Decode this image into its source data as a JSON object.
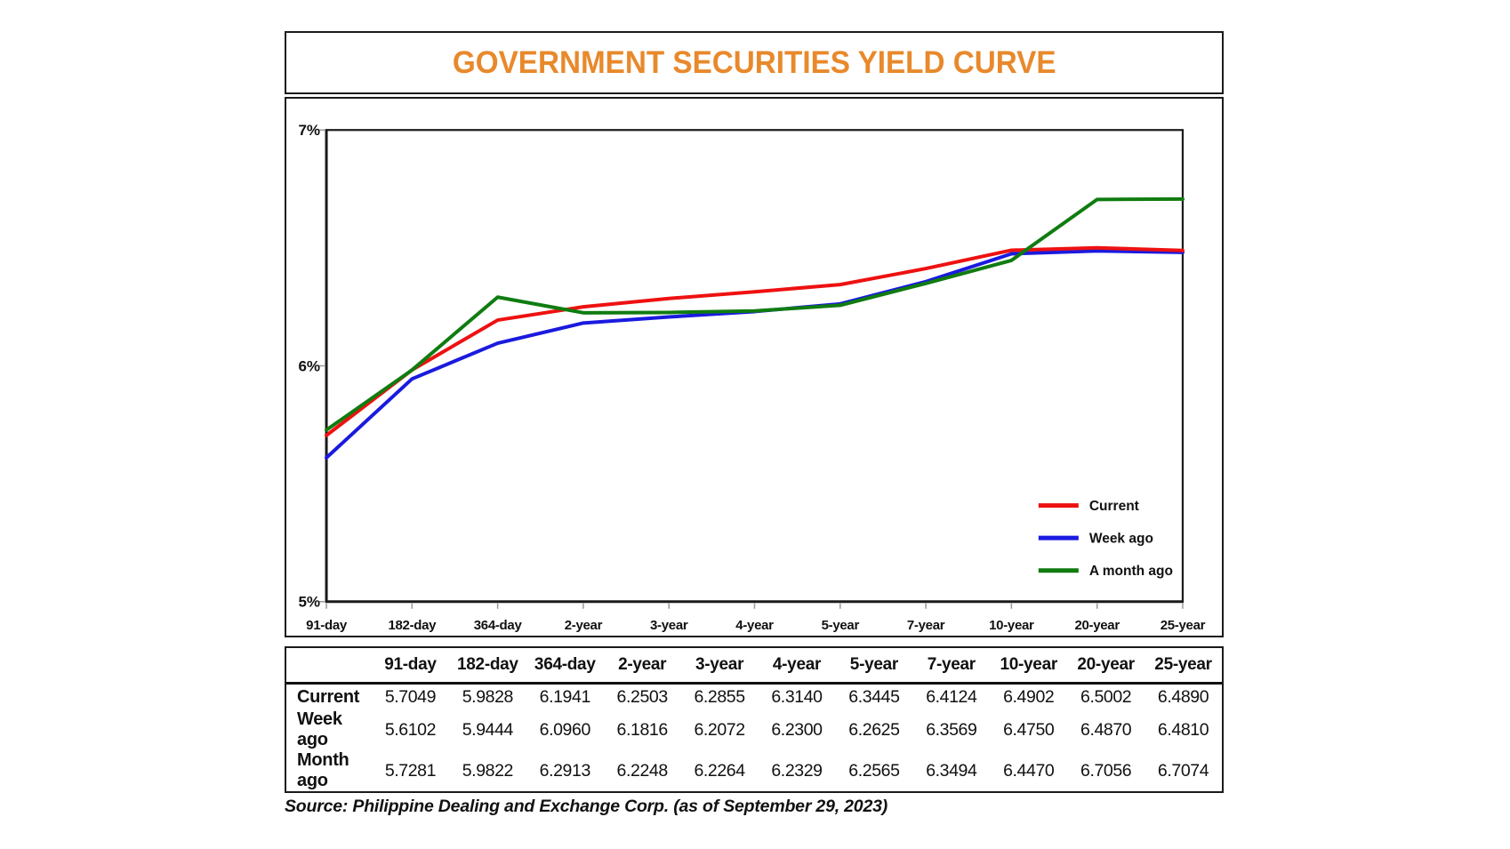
{
  "title": "GOVERNMENT SECURITIES YIELD CURVE",
  "source_note": "Source: Philippine Dealing and Exchange Corp. (as of September 29, 2023)",
  "colors": {
    "title_orange": "#E8892B",
    "current": "#EE1111",
    "week_ago": "#1A1ADF",
    "month_ago": "#107C10",
    "border": "#1A1A1A"
  },
  "chart_data": {
    "type": "line",
    "title": "GOVERNMENT SECURITIES YIELD CURVE",
    "categories": [
      "91-day",
      "182-day",
      "364-day",
      "2-year",
      "3-year",
      "4-year",
      "5-year",
      "7-year",
      "10-year",
      "20-year",
      "25-year"
    ],
    "y_axis": {
      "unit": "%",
      "min": 5,
      "max": 7,
      "ticks": [
        {
          "label": "7%",
          "value": 7
        },
        {
          "label": "6%",
          "value": 6
        },
        {
          "label": "5%",
          "value": 5
        }
      ]
    },
    "grid": false,
    "legend": {
      "position": "inside bottom-right",
      "entries": [
        "Current",
        "Week ago",
        "A month ago"
      ]
    },
    "series": [
      {
        "name": "Current",
        "color": "#EE1111",
        "values": [
          5.7049,
          5.9828,
          6.1941,
          6.2503,
          6.2855,
          6.314,
          6.3445,
          6.4124,
          6.4902,
          6.5002,
          6.489
        ]
      },
      {
        "name": "Week ago",
        "color": "#1A1ADF",
        "values": [
          5.6102,
          5.9444,
          6.096,
          6.1816,
          6.2072,
          6.23,
          6.2625,
          6.3569,
          6.475,
          6.487,
          6.481
        ]
      },
      {
        "name": "A month ago",
        "color": "#107C10",
        "values": [
          5.7281,
          5.9822,
          6.2913,
          6.2248,
          6.2264,
          6.2329,
          6.2565,
          6.3494,
          6.447,
          6.7056,
          6.7074
        ]
      }
    ]
  },
  "table": {
    "header": [
      "",
      "91-day",
      "182-day",
      "364-day",
      "2-year",
      "3-year",
      "4-year",
      "5-year",
      "7-year",
      "10-year",
      "20-year",
      "25-year"
    ],
    "rows": [
      {
        "label": "Current",
        "values": [
          "5.7049",
          "5.9828",
          "6.1941",
          "6.2503",
          "6.2855",
          "6.3140",
          "6.3445",
          "6.4124",
          "6.4902",
          "6.5002",
          "6.4890"
        ]
      },
      {
        "label": "Week ago",
        "values": [
          "5.6102",
          "5.9444",
          "6.0960",
          "6.1816",
          "6.2072",
          "6.2300",
          "6.2625",
          "6.3569",
          "6.4750",
          "6.4870",
          "6.4810"
        ]
      },
      {
        "label": "Month ago",
        "values": [
          "5.7281",
          "5.9822",
          "6.2913",
          "6.2248",
          "6.2264",
          "6.2329",
          "6.2565",
          "6.3494",
          "6.4470",
          "6.7056",
          "6.7074"
        ]
      }
    ]
  }
}
